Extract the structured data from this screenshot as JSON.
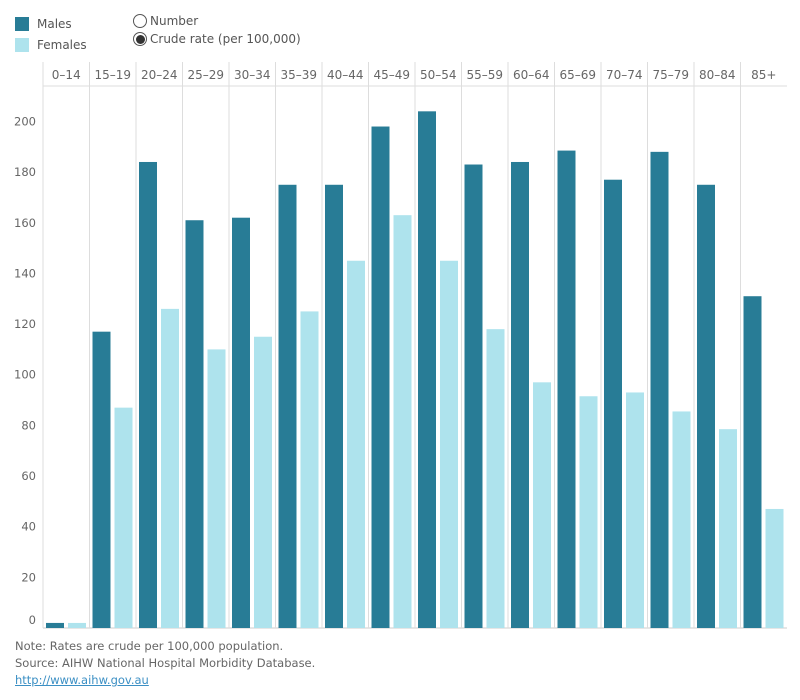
{
  "legend": {
    "items": [
      {
        "label": "Males",
        "color": "#287c96"
      },
      {
        "label": "Females",
        "color": "#aee3ed"
      }
    ]
  },
  "measure_selector": {
    "options": [
      {
        "label": "Number",
        "selected": false
      },
      {
        "label": "Crude rate (per 100,000)",
        "selected": true
      }
    ]
  },
  "chart_data": {
    "type": "bar",
    "categories": [
      "0–14",
      "15–19",
      "20–24",
      "25–29",
      "30–34",
      "35–39",
      "40–44",
      "45–49",
      "50–54",
      "55–59",
      "60–64",
      "65–69",
      "70–74",
      "75–79",
      "80–84",
      "85+"
    ],
    "series": [
      {
        "name": "Males",
        "color": "#287c96",
        "values": [
          2,
          117,
          184,
          161,
          162,
          175,
          175,
          198,
          204,
          183,
          184,
          188.5,
          177,
          188,
          175,
          131
        ]
      },
      {
        "name": "Females",
        "color": "#aee3ed",
        "values": [
          2,
          87,
          126,
          110,
          115,
          125,
          145,
          163,
          145,
          118,
          97,
          91.5,
          93,
          85.5,
          78.5,
          47
        ]
      }
    ],
    "ylim": [
      0,
      214
    ],
    "yticks": [
      0,
      20,
      40,
      60,
      80,
      100,
      120,
      140,
      160,
      180,
      200
    ],
    "grid": false,
    "legend": "top-left"
  },
  "footer": {
    "note": "Note: Rates are crude per 100,000 population.",
    "source": "Source: AIHW National Hospital Morbidity Database.",
    "link": "http://www.aihw.gov.au"
  }
}
